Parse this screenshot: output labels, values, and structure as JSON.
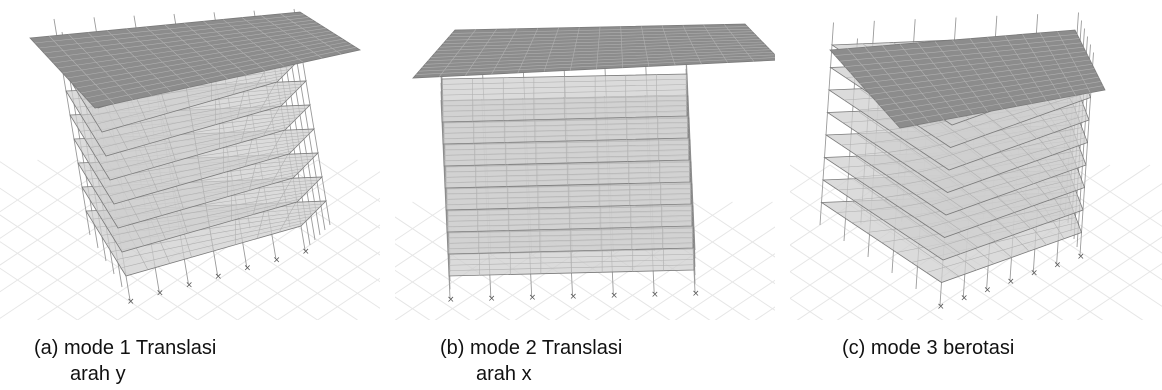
{
  "figure": {
    "panels": [
      {
        "caption_line1": "(a) mode 1 Translasi",
        "caption_line2": "arah y"
      },
      {
        "caption_line1": "(b) mode 2 Translasi",
        "caption_line2": "arah x"
      },
      {
        "caption_line1": "(c) mode 3 berotasi",
        "caption_line2": ""
      }
    ],
    "colors": {
      "roof": "#8c8c8c",
      "floor": "#cfcfcf",
      "grid": "#b0b0b0",
      "beam": "#9a9a9a",
      "ground_grid": "#e6e6e6"
    }
  }
}
